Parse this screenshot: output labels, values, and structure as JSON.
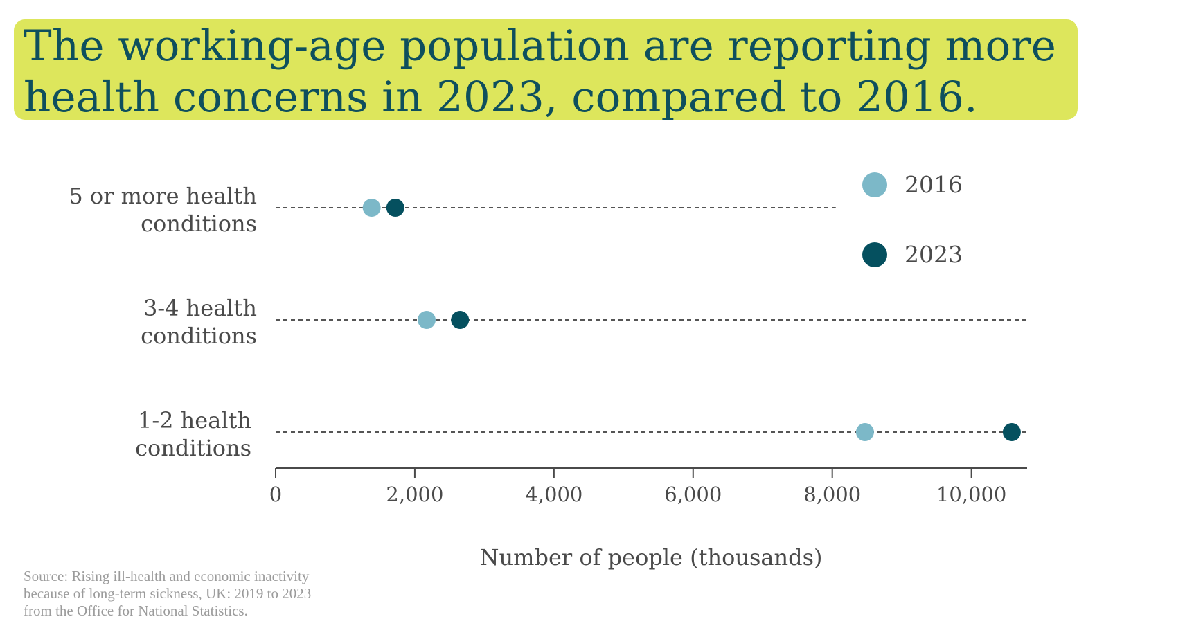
{
  "title": {
    "line1": "The working-age population are reporting more",
    "line2": "health concerns in 2023, compared to 2016."
  },
  "source": {
    "line1": "Source: Rising ill-health and economic inactivity",
    "line2": "because of long-term sickness, UK: 2019 to 2023",
    "line3": "from the Office for National Statistics."
  },
  "colors": {
    "title_bg": "#dde65c",
    "title_text": "#0e4f5d",
    "series_2016": "#7cb8c8",
    "series_2023": "#05505f",
    "axis": "#4a4a4a",
    "guide": "#555555"
  },
  "chart_data": {
    "type": "dot-plot",
    "title": "The working-age population are reporting more health concerns in 2023, compared to 2016.",
    "xlabel": "Number of people (thousands)",
    "ylabel": "",
    "xlim": [
      0,
      10800
    ],
    "xticks": [
      0,
      2000,
      4000,
      6000,
      8000,
      10000
    ],
    "xtick_labels": [
      "0",
      "2,000",
      "4,000",
      "6,000",
      "8,000",
      "10,000"
    ],
    "categories": [
      {
        "label_lines": [
          "5 or more health",
          "conditions"
        ],
        "guide_end": 8050
      },
      {
        "label_lines": [
          "3-4 health",
          "conditions"
        ],
        "guide_end": 10800
      },
      {
        "label_lines": [
          "1-2 health",
          "conditions"
        ],
        "guide_end": 10800
      }
    ],
    "series": [
      {
        "name": "2016",
        "values": [
          1380,
          2170,
          8470
        ]
      },
      {
        "name": "2023",
        "values": [
          1720,
          2650,
          10580
        ]
      }
    ],
    "legend": {
      "position": "top-right",
      "entries": [
        "2016",
        "2023"
      ]
    },
    "grid": false
  }
}
